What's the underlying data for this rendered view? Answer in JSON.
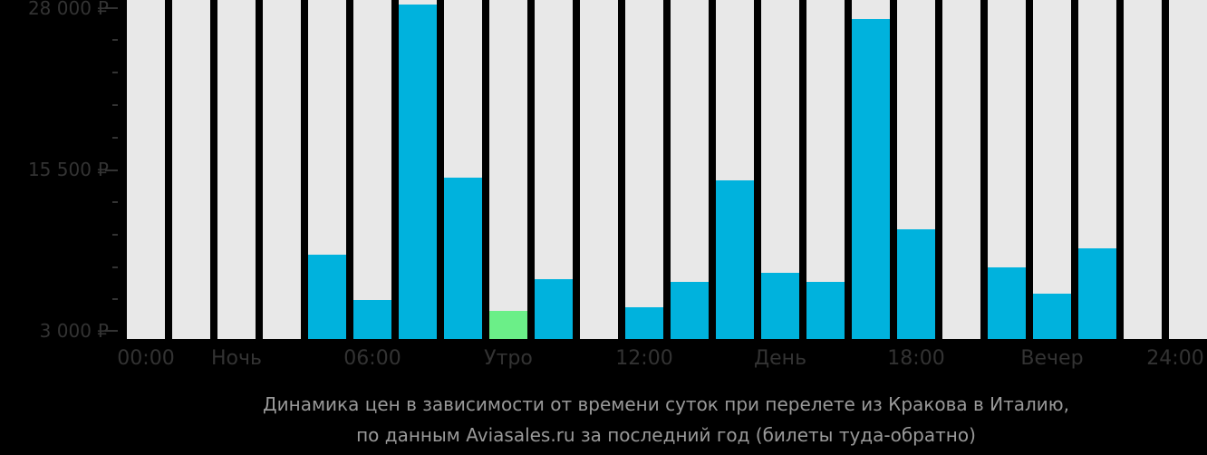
{
  "chart_data": {
    "type": "bar",
    "title": "Динамика цен в зависимости от времени суток при перелете из Кракова в Италию, по данным Aviasales.ru за последний год (билеты туда-обратно)",
    "xlabel": "",
    "ylabel": "",
    "ylim": [
      2350,
      28350
    ],
    "grid": false,
    "legend": null,
    "categories": [
      "00",
      "01",
      "02",
      "03",
      "04",
      "05",
      "06",
      "07",
      "08",
      "09",
      "10",
      "11",
      "12",
      "13",
      "14",
      "15",
      "16",
      "17",
      "18",
      "19",
      "20",
      "21",
      "22",
      "23"
    ],
    "values": [
      null,
      null,
      null,
      null,
      8950,
      5370,
      28350,
      14860,
      4530,
      6990,
      null,
      4810,
      6780,
      14650,
      7480,
      6780,
      27160,
      10920,
      null,
      7900,
      5930,
      9380,
      null,
      null
    ],
    "highlight_index": 8,
    "y_ticks": [
      {
        "value": 28000,
        "label": "28 000 ₽"
      },
      {
        "value": 15500,
        "label": "15 500 ₽"
      },
      {
        "value": 3000,
        "label": "3 000 ₽"
      }
    ],
    "x_tick_labels": [
      {
        "pos": 0,
        "label": "00:00",
        "kind": "hour"
      },
      {
        "pos": 3,
        "label": "Ночь",
        "kind": "period"
      },
      {
        "pos": 6,
        "label": "06:00",
        "kind": "hour"
      },
      {
        "pos": 9,
        "label": "Утро",
        "kind": "period"
      },
      {
        "pos": 12,
        "label": "12:00",
        "kind": "hour"
      },
      {
        "pos": 15,
        "label": "День",
        "kind": "period"
      },
      {
        "pos": 18,
        "label": "18:00",
        "kind": "hour"
      },
      {
        "pos": 21,
        "label": "Вечер",
        "kind": "period"
      },
      {
        "pos": 24,
        "label": "24:00",
        "kind": "hour"
      }
    ]
  },
  "axis": {
    "y_top": "28 000 ₽",
    "y_mid": "15 500 ₽",
    "y_bottom": "3 000 ₽"
  },
  "x_labels": [
    "00:00",
    "Ночь",
    "06:00",
    "Утро",
    "12:00",
    "День",
    "18:00",
    "Вечер",
    "24:00"
  ],
  "footer": {
    "line1": "Динамика цен в зависимости от времени суток при перелете из Кракова в Италию,",
    "line2": "по данным Aviasales.ru за последний год (билеты туда-обратно)"
  },
  "colors": {
    "background": "#000000",
    "column": "#e8e8e8",
    "bar": "#00b2dd",
    "bar_highlight": "#6bef88",
    "axis_text": "#333333",
    "footer_text": "#999999"
  }
}
